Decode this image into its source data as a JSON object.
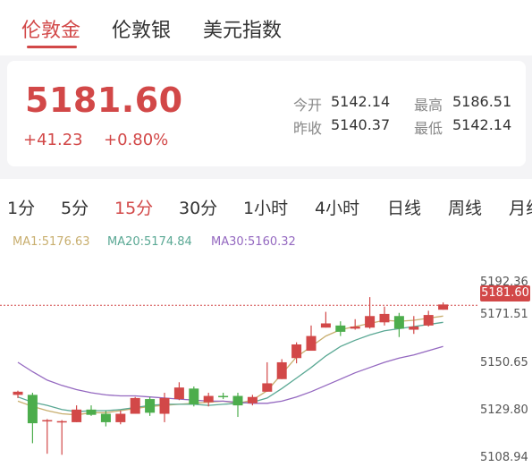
{
  "top_tabs": [
    {
      "label": "伦敦金",
      "active": true
    },
    {
      "label": "伦敦银",
      "active": false
    },
    {
      "label": "美元指数",
      "active": false
    }
  ],
  "quote": {
    "price": "5181.60",
    "change": "+41.23",
    "change_pct": "+0.80%",
    "stats": {
      "open_label": "今开",
      "open": "5142.14",
      "high_label": "最高",
      "high": "5186.51",
      "prev_close_label": "昨收",
      "prev_close": "5140.37",
      "low_label": "最低",
      "low": "5142.14"
    }
  },
  "periods": [
    {
      "label": "1分",
      "active": false
    },
    {
      "label": "5分",
      "active": false
    },
    {
      "label": "15分",
      "active": true
    },
    {
      "label": "30分",
      "active": false
    },
    {
      "label": "1小时",
      "active": false
    },
    {
      "label": "4小时",
      "active": false
    },
    {
      "label": "日线",
      "active": false
    },
    {
      "label": "周线",
      "active": false
    },
    {
      "label": "月线",
      "active": false
    }
  ],
  "ma_legend": [
    {
      "label": "MA1:5176.63",
      "color": "#c8ae6e"
    },
    {
      "label": "MA20:5174.84",
      "color": "#5aa894"
    },
    {
      "label": "MA30:5160.32",
      "color": "#9468c0"
    }
  ],
  "colors": {
    "up": "#d24848",
    "down": "#4cad4c",
    "accent": "#d24848"
  },
  "chart_data": {
    "type": "candlestick",
    "y_ticks": [
      "5192.36",
      "5171.51",
      "5150.65",
      "5129.80",
      "5108.94"
    ],
    "ylim": [
      5108.94,
      5192.36
    ],
    "current_price": 5181.6,
    "current_price_label": "5181.60",
    "candles": [
      {
        "o": 5139.0,
        "h": 5141.0,
        "l": 5137.5,
        "c": 5140.5
      },
      {
        "o": 5139.0,
        "h": 5140.0,
        "l": 5116.0,
        "c": 5125.5
      },
      {
        "o": 5127.0,
        "h": 5127.5,
        "l": 5111.0,
        "c": 5127.0
      },
      {
        "o": 5126.0,
        "h": 5127.0,
        "l": 5110.5,
        "c": 5126.5
      },
      {
        "o": 5126.0,
        "h": 5134.0,
        "l": 5126.0,
        "c": 5132.0
      },
      {
        "o": 5132.0,
        "h": 5134.0,
        "l": 5129.0,
        "c": 5129.5
      },
      {
        "o": 5130.0,
        "h": 5131.5,
        "l": 5124.0,
        "c": 5126.0
      },
      {
        "o": 5126.0,
        "h": 5131.5,
        "l": 5125.0,
        "c": 5130.0
      },
      {
        "o": 5130.0,
        "h": 5138.0,
        "l": 5130.0,
        "c": 5137.5
      },
      {
        "o": 5137.0,
        "h": 5138.0,
        "l": 5129.0,
        "c": 5130.5
      },
      {
        "o": 5130.0,
        "h": 5140.0,
        "l": 5126.0,
        "c": 5137.5
      },
      {
        "o": 5137.0,
        "h": 5145.0,
        "l": 5136.5,
        "c": 5142.5
      },
      {
        "o": 5142.0,
        "h": 5143.0,
        "l": 5133.5,
        "c": 5134.5
      },
      {
        "o": 5135.5,
        "h": 5140.0,
        "l": 5133.5,
        "c": 5138.5
      },
      {
        "o": 5138.5,
        "h": 5140.0,
        "l": 5137.0,
        "c": 5138.0
      },
      {
        "o": 5138.5,
        "h": 5140.0,
        "l": 5128.5,
        "c": 5134.0
      },
      {
        "o": 5135.0,
        "h": 5139.0,
        "l": 5134.0,
        "c": 5138.0
      },
      {
        "o": 5140.5,
        "h": 5154.5,
        "l": 5140.5,
        "c": 5144.5
      },
      {
        "o": 5146.5,
        "h": 5156.0,
        "l": 5146.5,
        "c": 5154.5
      },
      {
        "o": 5156.5,
        "h": 5164.0,
        "l": 5154.0,
        "c": 5163.0
      },
      {
        "o": 5160.0,
        "h": 5172.0,
        "l": 5160.0,
        "c": 5167.0
      },
      {
        "o": 5171.0,
        "h": 5178.5,
        "l": 5171.0,
        "c": 5173.0
      },
      {
        "o": 5172.0,
        "h": 5174.0,
        "l": 5167.0,
        "c": 5169.0
      },
      {
        "o": 5170.5,
        "h": 5175.0,
        "l": 5170.0,
        "c": 5171.5
      },
      {
        "o": 5171.0,
        "h": 5185.5,
        "l": 5170.5,
        "c": 5176.5
      },
      {
        "o": 5173.5,
        "h": 5181.0,
        "l": 5172.0,
        "c": 5177.5
      },
      {
        "o": 5176.5,
        "h": 5178.0,
        "l": 5166.5,
        "c": 5170.5
      },
      {
        "o": 5170.0,
        "h": 5176.5,
        "l": 5168.0,
        "c": 5171.5
      },
      {
        "o": 5172.0,
        "h": 5179.0,
        "l": 5171.5,
        "c": 5177.0
      },
      {
        "o": 5179.5,
        "h": 5183.0,
        "l": 5179.5,
        "c": 5182.0
      }
    ],
    "ma_lines": [
      {
        "name": "MA1",
        "color": "#c8ae6e",
        "values": [
          5136.0,
          5133.5,
          5131.5,
          5130.0,
          5129.5,
          5130.5,
          5130.5,
          5131.5,
          5132.5,
          5133.5,
          5134.0,
          5134.5,
          5135.0,
          5135.5,
          5136.0,
          5135.0,
          5136.5,
          5141.0,
          5149.0,
          5157.0,
          5162.0,
          5167.0,
          5170.0,
          5171.5,
          5173.0,
          5174.5,
          5174.0,
          5174.5,
          5175.5,
          5176.5
        ]
      },
      {
        "name": "MA20",
        "color": "#5aa894",
        "values": [
          5138.0,
          5135.5,
          5134.0,
          5132.0,
          5131.0,
          5131.5,
          5131.5,
          5132.0,
          5133.0,
          5134.0,
          5134.5,
          5134.5,
          5134.5,
          5134.0,
          5134.5,
          5135.0,
          5135.5,
          5137.5,
          5142.0,
          5147.0,
          5152.0,
          5157.5,
          5162.0,
          5165.0,
          5167.5,
          5169.5,
          5170.5,
          5171.5,
          5172.5,
          5173.5
        ]
      },
      {
        "name": "MA30",
        "color": "#9468c0",
        "values": [
          5154.5,
          5150.0,
          5146.0,
          5143.5,
          5141.5,
          5140.0,
          5139.0,
          5138.5,
          5138.5,
          5138.0,
          5137.5,
          5137.0,
          5136.5,
          5136.0,
          5136.0,
          5135.5,
          5135.0,
          5135.0,
          5136.0,
          5138.0,
          5140.5,
          5143.5,
          5146.5,
          5149.5,
          5152.0,
          5154.5,
          5156.5,
          5158.0,
          5160.0,
          5162.0
        ]
      }
    ]
  }
}
